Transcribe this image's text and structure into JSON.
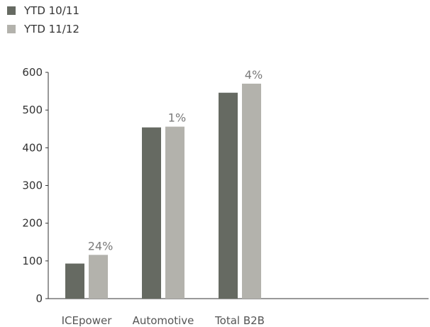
{
  "chart_data": {
    "type": "bar",
    "categories": [
      "ICEpower",
      "Automotive",
      "Total B2B"
    ],
    "series": [
      {
        "name": "YTD 10/11",
        "values": [
          93,
          454,
          546
        ],
        "color": "#666a62"
      },
      {
        "name": "YTD 11/12",
        "values": [
          116,
          456,
          570
        ],
        "color": "#b3b2ac"
      }
    ],
    "annotations": [
      "24%",
      "1%",
      "4%"
    ],
    "ylim": [
      0,
      600
    ],
    "yticks": [
      0,
      100,
      200,
      300,
      400,
      500,
      600
    ],
    "legend_position": "top-left",
    "grid": false
  }
}
